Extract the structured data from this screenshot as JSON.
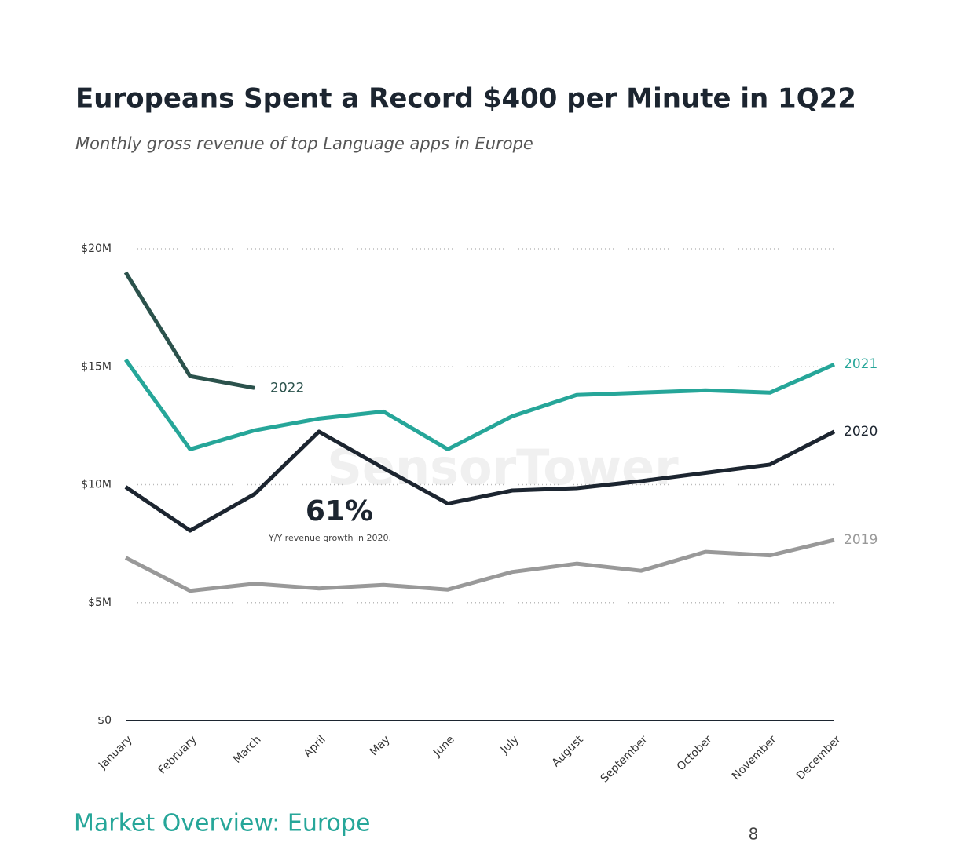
{
  "chart_data": {
    "type": "line",
    "title": "Europeans Spent a Record $400 per Minute in 1Q22",
    "subtitle": "Monthly gross revenue of top Language apps in Europe",
    "categories": [
      "January",
      "February",
      "March",
      "April",
      "May",
      "June",
      "July",
      "August",
      "September",
      "October",
      "November",
      "December"
    ],
    "series": [
      {
        "name": "2022",
        "color": "#2b524c",
        "values": [
          19.0,
          14.6,
          14.1,
          null,
          null,
          null,
          null,
          null,
          null,
          null,
          null,
          null
        ]
      },
      {
        "name": "2021",
        "color": "#26a699",
        "values": [
          15.3,
          11.5,
          12.3,
          12.8,
          13.1,
          11.5,
          12.9,
          13.8,
          13.9,
          14.0,
          13.9,
          15.1
        ]
      },
      {
        "name": "2020",
        "color": "#1c2530",
        "values": [
          9.9,
          8.05,
          9.6,
          12.25,
          10.7,
          9.2,
          9.75,
          9.85,
          10.15,
          10.5,
          10.85,
          12.25
        ]
      },
      {
        "name": "2019",
        "color": "#999999",
        "values": [
          6.9,
          5.5,
          5.8,
          5.6,
          5.75,
          5.55,
          6.3,
          6.65,
          6.35,
          7.15,
          7.0,
          7.65
        ]
      }
    ],
    "ylim": [
      0,
      20
    ],
    "yticks": [
      {
        "value": 0,
        "label": "$0"
      },
      {
        "value": 5,
        "label": "$5M"
      },
      {
        "value": 10,
        "label": "$10M"
      },
      {
        "value": 15,
        "label": "$15M"
      },
      {
        "value": 20,
        "label": "$20M"
      }
    ],
    "grid": true,
    "annotation": {
      "headline": "61%",
      "text": "Y/Y revenue growth in 2020."
    },
    "watermark": "SensorTower"
  },
  "footer": {
    "section": "Market Overview: Europe",
    "page": "8"
  }
}
